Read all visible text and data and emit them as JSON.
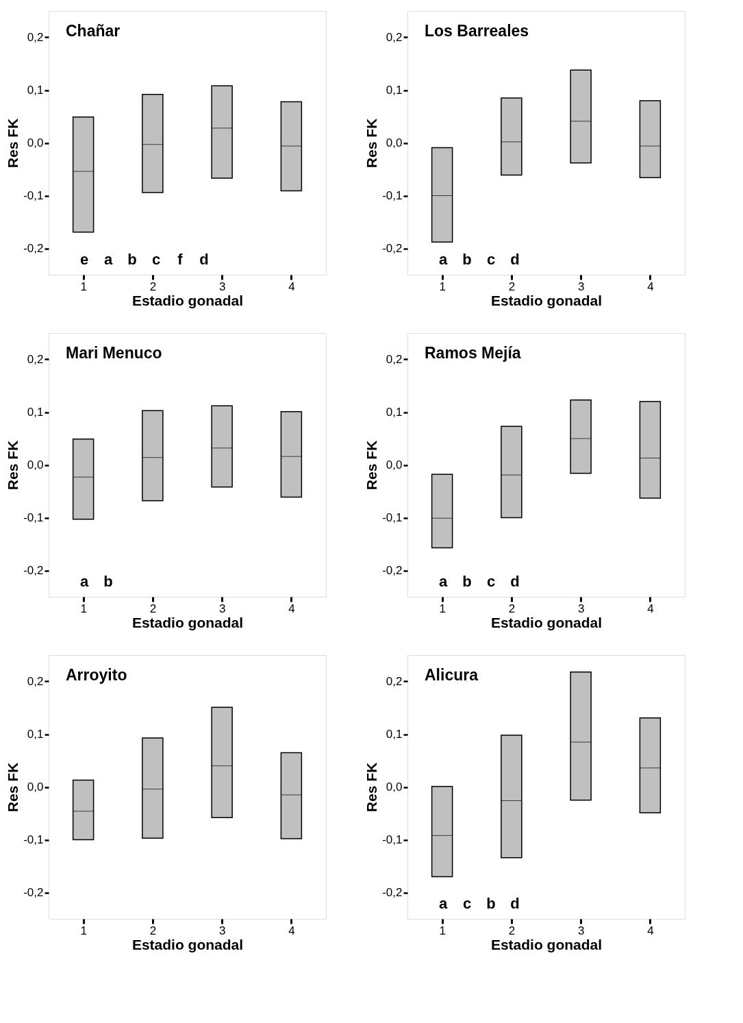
{
  "chart_data": [
    {
      "type": "box",
      "title": "Chañar",
      "xlabel": "Estadio gonadal",
      "ylabel": "Res FK",
      "color": "#c0c0c0",
      "categories": [
        "1",
        "2",
        "3",
        "4"
      ],
      "boxes": [
        {
          "low": -0.169,
          "q1": -0.169,
          "median": -0.054,
          "q3": 0.049,
          "high": 0.049
        },
        {
          "low": -0.094,
          "q1": -0.094,
          "median": -0.003,
          "q3": 0.092,
          "high": 0.092
        },
        {
          "low": -0.067,
          "q1": -0.067,
          "median": 0.028,
          "q3": 0.108,
          "high": 0.108
        },
        {
          "low": -0.091,
          "q1": -0.091,
          "median": -0.006,
          "q3": 0.078,
          "high": 0.078
        }
      ],
      "ylim": [
        -0.25,
        0.25
      ],
      "yticks": [
        {
          "value": -0.2,
          "label": "-0,2"
        },
        {
          "value": -0.1,
          "label": "-0,1"
        },
        {
          "value": 0,
          "label": "0,0"
        },
        {
          "value": 0.1,
          "label": "0,1"
        },
        {
          "value": 0.2,
          "label": "0,2"
        }
      ],
      "annotations": [
        "e",
        "a",
        "b",
        "c",
        "f",
        "d"
      ]
    },
    {
      "type": "box",
      "title": "Los Barreales",
      "xlabel": "Estadio gonadal",
      "ylabel": "Res FK",
      "color": "#c0c0c0",
      "categories": [
        "1",
        "2",
        "3",
        "4"
      ],
      "boxes": [
        {
          "low": -0.188,
          "q1": -0.188,
          "median": -0.1,
          "q3": -0.009,
          "high": -0.009
        },
        {
          "low": -0.061,
          "q1": -0.061,
          "median": 0.002,
          "q3": 0.085,
          "high": 0.085
        },
        {
          "low": -0.038,
          "q1": -0.038,
          "median": 0.041,
          "q3": 0.138,
          "high": 0.138
        },
        {
          "low": -0.066,
          "q1": -0.066,
          "median": -0.006,
          "q3": 0.08,
          "high": 0.08
        }
      ],
      "ylim": [
        -0.25,
        0.25
      ],
      "yticks": [
        {
          "value": -0.2,
          "label": "-0,2"
        },
        {
          "value": -0.1,
          "label": "-0,1"
        },
        {
          "value": 0,
          "label": "0,0"
        },
        {
          "value": 0.1,
          "label": "0,1"
        },
        {
          "value": 0.2,
          "label": "0,2"
        }
      ],
      "annotations": [
        "a",
        "b",
        "c",
        "d"
      ]
    },
    {
      "type": "box",
      "title": "Mari Menuco",
      "xlabel": "Estadio gonadal",
      "ylabel": "Res FK",
      "color": "#c0c0c0",
      "categories": [
        "1",
        "2",
        "3",
        "4"
      ],
      "boxes": [
        {
          "low": -0.103,
          "q1": -0.103,
          "median": -0.023,
          "q3": 0.049,
          "high": 0.049
        },
        {
          "low": -0.068,
          "q1": -0.068,
          "median": 0.014,
          "q3": 0.103,
          "high": 0.103
        },
        {
          "low": -0.042,
          "q1": -0.042,
          "median": 0.032,
          "q3": 0.112,
          "high": 0.112
        },
        {
          "low": -0.061,
          "q1": -0.061,
          "median": 0.016,
          "q3": 0.101,
          "high": 0.101
        }
      ],
      "ylim": [
        -0.25,
        0.25
      ],
      "yticks": [
        {
          "value": -0.2,
          "label": "-0,2"
        },
        {
          "value": -0.1,
          "label": "-0,1"
        },
        {
          "value": 0,
          "label": "0,0"
        },
        {
          "value": 0.1,
          "label": "0,1"
        },
        {
          "value": 0.2,
          "label": "0,2"
        }
      ],
      "annotations": [
        "a",
        "b"
      ]
    },
    {
      "type": "box",
      "title": "Ramos Mejía",
      "xlabel": "Estadio gonadal",
      "ylabel": "Res FK",
      "color": "#c0c0c0",
      "categories": [
        "1",
        "2",
        "3",
        "4"
      ],
      "boxes": [
        {
          "low": -0.157,
          "q1": -0.157,
          "median": -0.101,
          "q3": -0.018,
          "high": -0.018
        },
        {
          "low": -0.1,
          "q1": -0.1,
          "median": -0.019,
          "q3": 0.073,
          "high": 0.073
        },
        {
          "low": -0.016,
          "q1": -0.016,
          "median": 0.05,
          "q3": 0.123,
          "high": 0.123
        },
        {
          "low": -0.063,
          "q1": -0.063,
          "median": 0.013,
          "q3": 0.12,
          "high": 0.12
        }
      ],
      "ylim": [
        -0.25,
        0.25
      ],
      "yticks": [
        {
          "value": -0.2,
          "label": "-0,2"
        },
        {
          "value": -0.1,
          "label": "-0,1"
        },
        {
          "value": 0,
          "label": "0,0"
        },
        {
          "value": 0.1,
          "label": "0,1"
        },
        {
          "value": 0.2,
          "label": "0,2"
        }
      ],
      "annotations": [
        "a",
        "b",
        "c",
        "d"
      ]
    },
    {
      "type": "box",
      "title": "Arroyito",
      "xlabel": "Estadio gonadal",
      "ylabel": "Res FK",
      "color": "#c0c0c0",
      "categories": [
        "1",
        "2",
        "3",
        "4"
      ],
      "boxes": [
        {
          "low": -0.1,
          "q1": -0.1,
          "median": -0.046,
          "q3": 0.013,
          "high": 0.013
        },
        {
          "low": -0.097,
          "q1": -0.097,
          "median": -0.004,
          "q3": 0.093,
          "high": 0.093
        },
        {
          "low": -0.058,
          "q1": -0.058,
          "median": 0.04,
          "q3": 0.151,
          "high": 0.151
        },
        {
          "low": -0.098,
          "q1": -0.098,
          "median": -0.015,
          "q3": 0.065,
          "high": 0.065
        }
      ],
      "ylim": [
        -0.25,
        0.25
      ],
      "yticks": [
        {
          "value": -0.2,
          "label": "-0,2"
        },
        {
          "value": -0.1,
          "label": "-0,1"
        },
        {
          "value": 0,
          "label": "0,0"
        },
        {
          "value": 0.1,
          "label": "0,1"
        },
        {
          "value": 0.2,
          "label": "0,2"
        }
      ]
    },
    {
      "type": "box",
      "title": "Alicura",
      "xlabel": "Estadio gonadal",
      "ylabel": "Res FK",
      "color": "#c0c0c0",
      "categories": [
        "1",
        "2",
        "3",
        "4"
      ],
      "boxes": [
        {
          "low": -0.17,
          "q1": -0.17,
          "median": -0.092,
          "q3": 0.001,
          "high": 0.001
        },
        {
          "low": -0.134,
          "q1": -0.134,
          "median": -0.026,
          "q3": 0.098,
          "high": 0.098
        },
        {
          "low": -0.025,
          "q1": -0.025,
          "median": 0.085,
          "q3": 0.218,
          "high": 0.218
        },
        {
          "low": -0.049,
          "q1": -0.049,
          "median": 0.036,
          "q3": 0.131,
          "high": 0.131
        }
      ],
      "ylim": [
        -0.25,
        0.25
      ],
      "yticks": [
        {
          "value": -0.2,
          "label": "-0,2"
        },
        {
          "value": -0.1,
          "label": "-0,1"
        },
        {
          "value": 0,
          "label": "0,0"
        },
        {
          "value": 0.1,
          "label": "0,1"
        },
        {
          "value": 0.2,
          "label": "0,2"
        }
      ],
      "annotations": [
        "a",
        "c",
        "b",
        "d"
      ]
    }
  ]
}
